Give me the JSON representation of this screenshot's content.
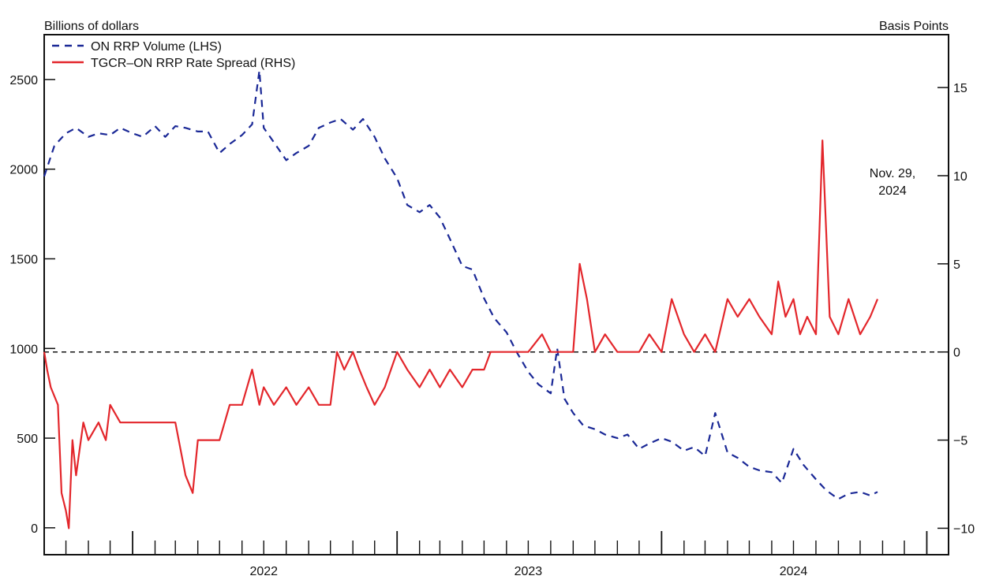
{
  "chart_data": {
    "type": "line",
    "left_axis_label": "Billions of dollars",
    "right_axis_label": "Basis Points",
    "annotation": [
      "Nov. 29,",
      "2024"
    ],
    "x_axis": {
      "start": "2021-09-01",
      "end": "2025-01-31",
      "year_labels": [
        {
          "label": "2022",
          "center": "2022-07-01"
        },
        {
          "label": "2023",
          "center": "2023-07-01"
        },
        {
          "label": "2024",
          "center": "2024-07-01"
        }
      ],
      "year_boundaries": [
        "2022-01-01",
        "2023-01-01",
        "2024-01-01",
        "2025-01-01"
      ]
    },
    "left_axis": {
      "min": -150,
      "max": 2750,
      "ticks": [
        0,
        500,
        1000,
        1500,
        2000,
        2500
      ]
    },
    "right_axis": {
      "min": -11.5,
      "max": 18,
      "ticks": [
        -10,
        -5,
        0,
        5,
        10,
        15
      ]
    },
    "zero_line": {
      "axis": "right",
      "value": 0
    },
    "series": [
      {
        "name": "ON RRP Volume (LHS)",
        "axis": "left",
        "color": "#1a2896",
        "style": "dashed",
        "points": [
          [
            "2021-09-01",
            1960
          ],
          [
            "2021-09-15",
            2130
          ],
          [
            "2021-10-01",
            2200
          ],
          [
            "2021-10-15",
            2230
          ],
          [
            "2021-11-01",
            2180
          ],
          [
            "2021-11-15",
            2200
          ],
          [
            "2021-12-01",
            2190
          ],
          [
            "2021-12-15",
            2230
          ],
          [
            "2022-01-01",
            2200
          ],
          [
            "2022-01-15",
            2180
          ],
          [
            "2022-02-01",
            2240
          ],
          [
            "2022-02-15",
            2180
          ],
          [
            "2022-03-01",
            2240
          ],
          [
            "2022-03-15",
            2230
          ],
          [
            "2022-04-01",
            2210
          ],
          [
            "2022-04-15",
            2210
          ],
          [
            "2022-05-01",
            2090
          ],
          [
            "2022-05-15",
            2140
          ],
          [
            "2022-06-01",
            2190
          ],
          [
            "2022-06-15",
            2250
          ],
          [
            "2022-06-25",
            2550
          ],
          [
            "2022-07-01",
            2230
          ],
          [
            "2022-07-15",
            2150
          ],
          [
            "2022-08-01",
            2050
          ],
          [
            "2022-08-15",
            2090
          ],
          [
            "2022-09-01",
            2130
          ],
          [
            "2022-09-15",
            2230
          ],
          [
            "2022-10-01",
            2260
          ],
          [
            "2022-10-15",
            2280
          ],
          [
            "2022-11-01",
            2220
          ],
          [
            "2022-11-15",
            2280
          ],
          [
            "2022-12-01",
            2180
          ],
          [
            "2022-12-15",
            2060
          ],
          [
            "2023-01-01",
            1950
          ],
          [
            "2023-01-15",
            1800
          ],
          [
            "2023-02-01",
            1760
          ],
          [
            "2023-02-15",
            1800
          ],
          [
            "2023-03-01",
            1730
          ],
          [
            "2023-03-15",
            1610
          ],
          [
            "2023-04-01",
            1460
          ],
          [
            "2023-04-15",
            1440
          ],
          [
            "2023-05-01",
            1280
          ],
          [
            "2023-05-15",
            1170
          ],
          [
            "2023-06-01",
            1090
          ],
          [
            "2023-06-15",
            980
          ],
          [
            "2023-07-01",
            870
          ],
          [
            "2023-07-15",
            800
          ],
          [
            "2023-08-01",
            750
          ],
          [
            "2023-08-10",
            1000
          ],
          [
            "2023-08-20",
            720
          ],
          [
            "2023-09-01",
            640
          ],
          [
            "2023-09-15",
            570
          ],
          [
            "2023-10-01",
            550
          ],
          [
            "2023-10-15",
            520
          ],
          [
            "2023-11-01",
            500
          ],
          [
            "2023-11-15",
            520
          ],
          [
            "2023-12-01",
            440
          ],
          [
            "2023-12-15",
            470
          ],
          [
            "2024-01-01",
            500
          ],
          [
            "2024-01-15",
            480
          ],
          [
            "2024-02-01",
            430
          ],
          [
            "2024-02-15",
            450
          ],
          [
            "2024-03-01",
            400
          ],
          [
            "2024-03-15",
            640
          ],
          [
            "2024-04-01",
            420
          ],
          [
            "2024-04-15",
            390
          ],
          [
            "2024-05-01",
            340
          ],
          [
            "2024-05-15",
            320
          ],
          [
            "2024-06-01",
            310
          ],
          [
            "2024-06-15",
            250
          ],
          [
            "2024-07-01",
            440
          ],
          [
            "2024-07-15",
            350
          ],
          [
            "2024-08-01",
            270
          ],
          [
            "2024-08-15",
            210
          ],
          [
            "2024-09-01",
            160
          ],
          [
            "2024-09-15",
            190
          ],
          [
            "2024-10-01",
            200
          ],
          [
            "2024-10-15",
            180
          ],
          [
            "2024-10-25",
            200
          ]
        ]
      },
      {
        "name": "TGCR–ON RRP Rate Spread (RHS)",
        "axis": "right",
        "color": "#e3262b",
        "style": "solid",
        "points": [
          [
            "2021-09-01",
            0
          ],
          [
            "2021-09-05",
            -1
          ],
          [
            "2021-09-10",
            -2
          ],
          [
            "2021-09-20",
            -3
          ],
          [
            "2021-09-25",
            -8
          ],
          [
            "2021-10-01",
            -9
          ],
          [
            "2021-10-05",
            -10
          ],
          [
            "2021-10-10",
            -5
          ],
          [
            "2021-10-15",
            -7
          ],
          [
            "2021-10-25",
            -4
          ],
          [
            "2021-11-01",
            -5
          ],
          [
            "2021-11-15",
            -4
          ],
          [
            "2021-11-25",
            -5
          ],
          [
            "2021-12-01",
            -3
          ],
          [
            "2021-12-15",
            -4
          ],
          [
            "2022-01-01",
            -4
          ],
          [
            "2022-02-01",
            -4
          ],
          [
            "2022-03-01",
            -4
          ],
          [
            "2022-03-15",
            -7
          ],
          [
            "2022-03-25",
            -8
          ],
          [
            "2022-04-01",
            -5
          ],
          [
            "2022-05-01",
            -5
          ],
          [
            "2022-05-15",
            -3
          ],
          [
            "2022-06-01",
            -3
          ],
          [
            "2022-06-15",
            -1
          ],
          [
            "2022-06-25",
            -3
          ],
          [
            "2022-07-01",
            -2
          ],
          [
            "2022-07-15",
            -3
          ],
          [
            "2022-08-01",
            -2
          ],
          [
            "2022-08-15",
            -3
          ],
          [
            "2022-09-01",
            -2
          ],
          [
            "2022-09-15",
            -3
          ],
          [
            "2022-10-01",
            -3
          ],
          [
            "2022-10-10",
            0
          ],
          [
            "2022-10-20",
            -1
          ],
          [
            "2022-11-01",
            0
          ],
          [
            "2022-11-10",
            -1
          ],
          [
            "2022-11-20",
            -2
          ],
          [
            "2022-12-01",
            -3
          ],
          [
            "2022-12-15",
            -2
          ],
          [
            "2023-01-01",
            0
          ],
          [
            "2023-01-15",
            -1
          ],
          [
            "2023-02-01",
            -2
          ],
          [
            "2023-02-15",
            -1
          ],
          [
            "2023-03-01",
            -2
          ],
          [
            "2023-03-15",
            -1
          ],
          [
            "2023-04-01",
            -2
          ],
          [
            "2023-04-15",
            -1
          ],
          [
            "2023-05-01",
            -1
          ],
          [
            "2023-05-10",
            0
          ],
          [
            "2023-06-01",
            0
          ],
          [
            "2023-07-01",
            0
          ],
          [
            "2023-07-20",
            1
          ],
          [
            "2023-08-01",
            0
          ],
          [
            "2023-09-01",
            0
          ],
          [
            "2023-09-10",
            5
          ],
          [
            "2023-09-20",
            3
          ],
          [
            "2023-10-01",
            0
          ],
          [
            "2023-10-15",
            1
          ],
          [
            "2023-11-01",
            0
          ],
          [
            "2023-12-01",
            0
          ],
          [
            "2023-12-15",
            1
          ],
          [
            "2024-01-01",
            0
          ],
          [
            "2024-01-15",
            3
          ],
          [
            "2024-02-01",
            1
          ],
          [
            "2024-02-15",
            0
          ],
          [
            "2024-03-01",
            1
          ],
          [
            "2024-03-15",
            0
          ],
          [
            "2024-04-01",
            3
          ],
          [
            "2024-04-15",
            2
          ],
          [
            "2024-05-01",
            3
          ],
          [
            "2024-05-15",
            2
          ],
          [
            "2024-06-01",
            1
          ],
          [
            "2024-06-10",
            4
          ],
          [
            "2024-06-20",
            2
          ],
          [
            "2024-07-01",
            3
          ],
          [
            "2024-07-10",
            1
          ],
          [
            "2024-07-20",
            2
          ],
          [
            "2024-08-01",
            1
          ],
          [
            "2024-08-10",
            12
          ],
          [
            "2024-08-20",
            2
          ],
          [
            "2024-09-01",
            1
          ],
          [
            "2024-09-15",
            3
          ],
          [
            "2024-10-01",
            1
          ],
          [
            "2024-10-15",
            2
          ],
          [
            "2024-10-25",
            3
          ]
        ]
      }
    ]
  }
}
